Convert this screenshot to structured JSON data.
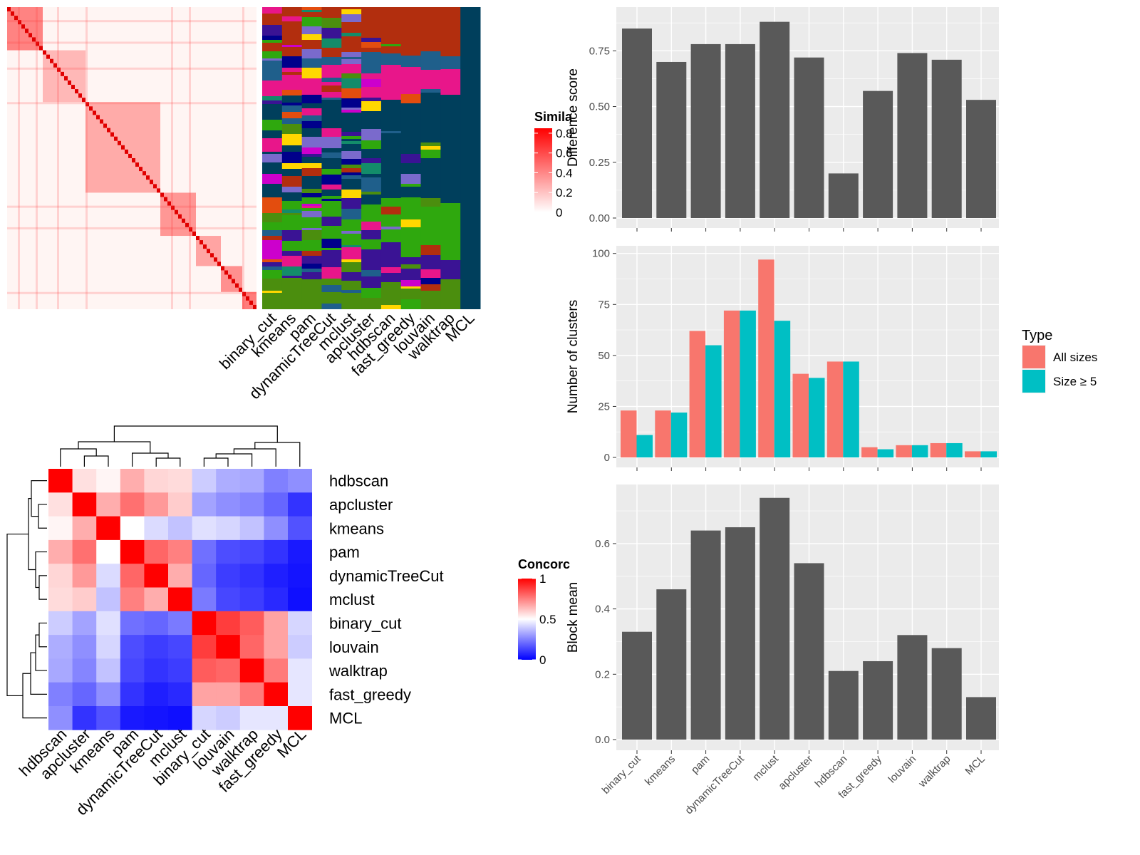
{
  "similarity_panel": {
    "legend_title": "Simila",
    "legend_ticks": [
      "0.8",
      "0.6",
      "0.4",
      "0.2",
      "0"
    ],
    "method_labels": [
      "binary_cut",
      "kmeans",
      "pam",
      "dynamicTreeCut",
      "mclust",
      "apcluster",
      "hdbscan",
      "fast_greedy",
      "louvain",
      "walktrap",
      "MCL"
    ],
    "colors": {
      "low": "#FFFFFF",
      "high": "#FF0000",
      "background": "#003F5C"
    }
  },
  "concordance_panel": {
    "legend_title": "Concorc",
    "legend_ticks": [
      "1",
      "0.5",
      "0"
    ],
    "row_labels": [
      "hdbscan",
      "apcluster",
      "kmeans",
      "pam",
      "dynamicTreeCut",
      "mclust",
      "binary_cut",
      "louvain",
      "walktrap",
      "fast_greedy",
      "MCL"
    ],
    "col_labels": [
      "hdbscan",
      "apcluster",
      "kmeans",
      "pam",
      "dynamicTreeCut",
      "mclust",
      "binary_cut",
      "louvain",
      "walktrap",
      "fast_greedy",
      "MCL"
    ],
    "colors": {
      "low": "#0000FF",
      "mid": "#FFFFFF",
      "high": "#FF0000"
    }
  },
  "chart_data": [
    {
      "type": "bar",
      "categories": [
        "binary_cut",
        "kmeans",
        "pam",
        "dynamicTreeCut",
        "mclust",
        "apcluster",
        "hdbscan",
        "fast_greedy",
        "louvain",
        "walktrap",
        "MCL"
      ],
      "values": [
        0.85,
        0.7,
        0.78,
        0.78,
        0.88,
        0.72,
        0.2,
        0.57,
        0.74,
        0.71,
        0.53
      ],
      "ylabel": "Difference score",
      "yticks": [
        "0.00",
        "0.25",
        "0.50",
        "0.75"
      ],
      "ylim": [
        0,
        0.93
      ],
      "grid": true
    },
    {
      "type": "bar",
      "categories": [
        "binary_cut",
        "kmeans",
        "pam",
        "dynamicTreeCut",
        "mclust",
        "apcluster",
        "hdbscan",
        "fast_greedy",
        "louvain",
        "walktrap",
        "MCL"
      ],
      "series": [
        {
          "name": "All sizes",
          "color": "#F8766D",
          "values": [
            23,
            23,
            62,
            72,
            97,
            41,
            47,
            5,
            6,
            7,
            3
          ]
        },
        {
          "name": "Size ≥ 5",
          "color": "#00BFC4",
          "values": [
            11,
            22,
            55,
            72,
            67,
            39,
            47,
            4,
            6,
            7,
            3
          ]
        }
      ],
      "ylabel": "Number of clusters",
      "yticks": [
        "0",
        "25",
        "50",
        "75",
        "100"
      ],
      "ylim": [
        0,
        102
      ],
      "legend_title": "Type",
      "legend_position": "right",
      "grid": true
    },
    {
      "type": "bar",
      "categories": [
        "binary_cut",
        "kmeans",
        "pam",
        "dynamicTreeCut",
        "mclust",
        "apcluster",
        "hdbscan",
        "fast_greedy",
        "louvain",
        "walktrap",
        "MCL"
      ],
      "values": [
        0.33,
        0.46,
        0.64,
        0.65,
        0.74,
        0.54,
        0.21,
        0.24,
        0.32,
        0.28,
        0.13
      ],
      "ylabel": "Block mean",
      "yticks": [
        "0.0",
        "0.2",
        "0.4",
        "0.6"
      ],
      "ylim": [
        0,
        0.77
      ],
      "grid": true
    },
    {
      "type": "heatmap",
      "rows": [
        "hdbscan",
        "apcluster",
        "kmeans",
        "pam",
        "dynamicTreeCut",
        "mclust",
        "binary_cut",
        "louvain",
        "walktrap",
        "fast_greedy",
        "MCL"
      ],
      "cols": [
        "hdbscan",
        "apcluster",
        "kmeans",
        "pam",
        "dynamicTreeCut",
        "mclust",
        "binary_cut",
        "louvain",
        "walktrap",
        "fast_greedy",
        "MCL"
      ],
      "values": [
        [
          1.0,
          0.56,
          0.52,
          0.66,
          0.58,
          0.57,
          0.4,
          0.34,
          0.33,
          0.25,
          0.28
        ],
        [
          0.56,
          1.0,
          0.66,
          0.78,
          0.7,
          0.6,
          0.32,
          0.28,
          0.26,
          0.2,
          0.1
        ],
        [
          0.52,
          0.66,
          1.0,
          0.5,
          0.43,
          0.38,
          0.44,
          0.42,
          0.38,
          0.28,
          0.16
        ],
        [
          0.66,
          0.78,
          0.5,
          1.0,
          0.8,
          0.75,
          0.22,
          0.15,
          0.14,
          0.1,
          0.05
        ],
        [
          0.58,
          0.7,
          0.43,
          0.8,
          1.0,
          0.66,
          0.2,
          0.12,
          0.1,
          0.06,
          0.04
        ],
        [
          0.57,
          0.6,
          0.38,
          0.75,
          0.66,
          1.0,
          0.24,
          0.14,
          0.12,
          0.08,
          0.03
        ],
        [
          0.4,
          0.32,
          0.44,
          0.22,
          0.2,
          0.24,
          1.0,
          0.88,
          0.82,
          0.68,
          0.42
        ],
        [
          0.34,
          0.28,
          0.42,
          0.15,
          0.12,
          0.14,
          0.88,
          1.0,
          0.8,
          0.68,
          0.4
        ],
        [
          0.33,
          0.26,
          0.38,
          0.14,
          0.1,
          0.12,
          0.82,
          0.8,
          1.0,
          0.76,
          0.45
        ],
        [
          0.25,
          0.2,
          0.28,
          0.1,
          0.06,
          0.08,
          0.68,
          0.68,
          0.76,
          1.0,
          0.45
        ],
        [
          0.28,
          0.1,
          0.16,
          0.05,
          0.04,
          0.03,
          0.42,
          0.4,
          0.45,
          0.45,
          1.0
        ]
      ]
    }
  ]
}
